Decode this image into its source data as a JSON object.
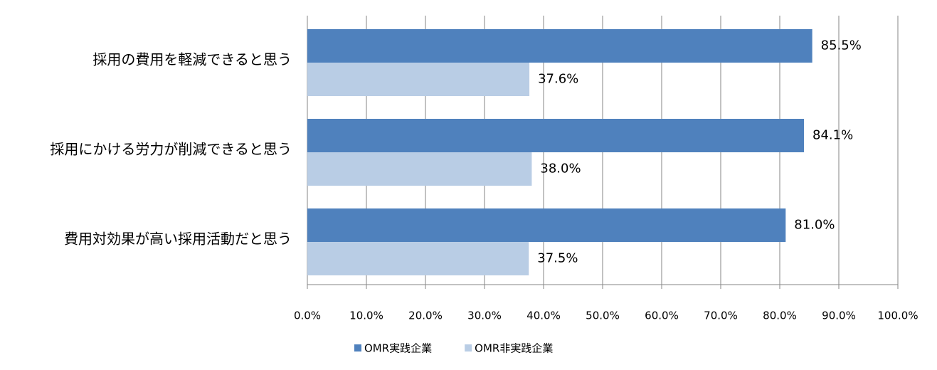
{
  "chart_data": {
    "type": "bar",
    "orientation": "horizontal",
    "categories": [
      "採用の費用を軽減できると思う",
      "採用にかける労力が削減できると思う",
      "費用対効果が高い採用活動だと思う"
    ],
    "series": [
      {
        "name": "OMR実践企業",
        "color": "#4f81bd",
        "values": [
          85.5,
          84.1,
          81.0
        ],
        "value_labels": [
          "85.5%",
          "84.1%",
          "81.0%"
        ]
      },
      {
        "name": "OMR非実践企業",
        "color": "#b9cde5",
        "values": [
          37.6,
          38.0,
          37.5
        ],
        "value_labels": [
          "37.6%",
          "38.0%",
          "37.5%"
        ]
      }
    ],
    "xlim": [
      0,
      100
    ],
    "xticks": [
      {
        "value": 0,
        "label": "0.0%"
      },
      {
        "value": 10,
        "label": "10.0%"
      },
      {
        "value": 20,
        "label": "20.0%"
      },
      {
        "value": 30,
        "label": "30.0%"
      },
      {
        "value": 40,
        "label": "40.0%"
      },
      {
        "value": 50,
        "label": "50.0%"
      },
      {
        "value": 60,
        "label": "60.0%"
      },
      {
        "value": 70,
        "label": "70.0%"
      },
      {
        "value": 80,
        "label": "80.0%"
      },
      {
        "value": 90,
        "label": "90.0%"
      },
      {
        "value": 100,
        "label": "100.0%"
      }
    ],
    "grid": true,
    "legend": "bottom"
  }
}
